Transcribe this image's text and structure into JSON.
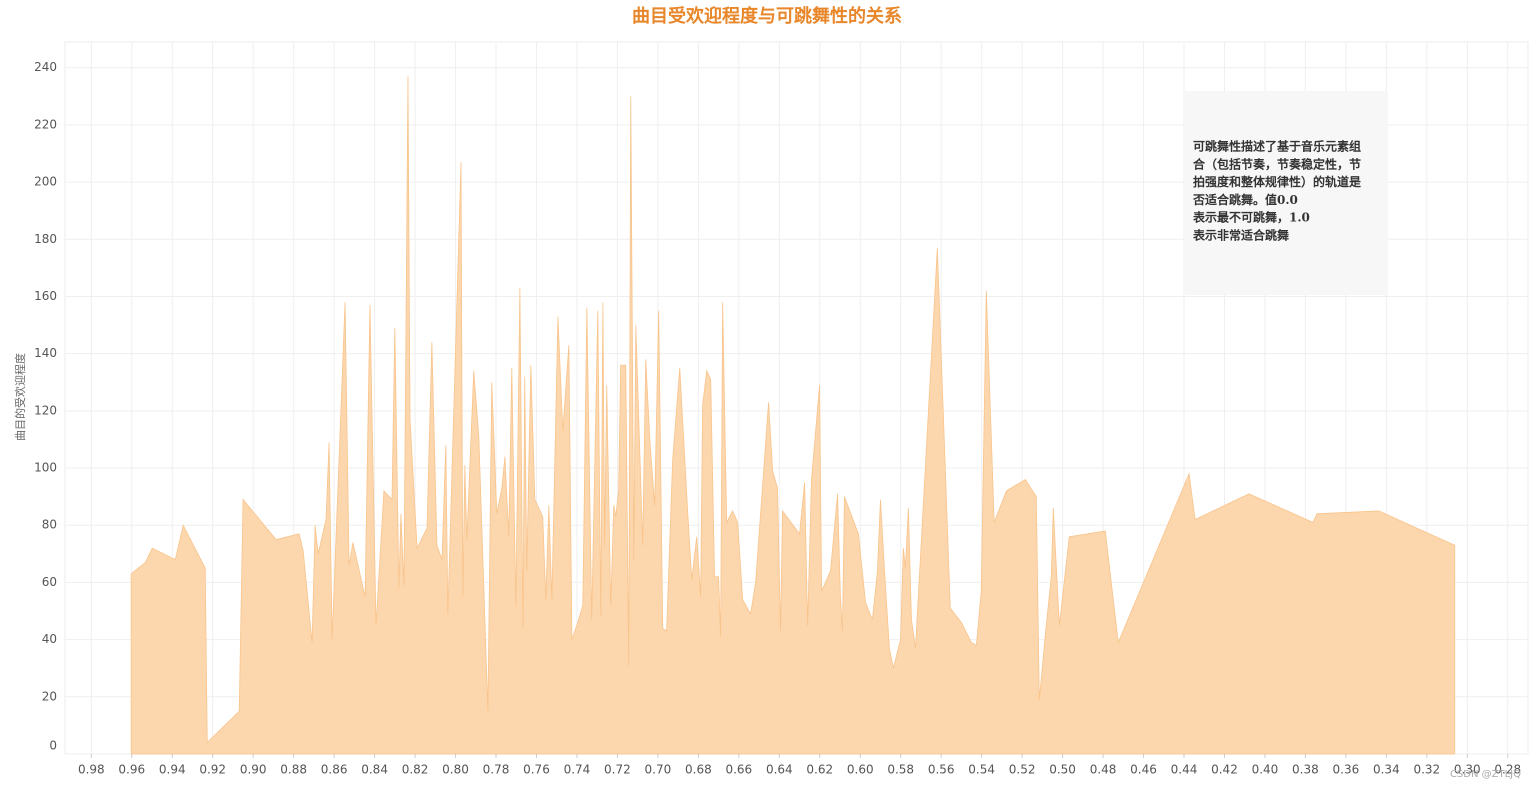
{
  "chart_data": {
    "type": "area",
    "title": "曲目受欢迎程度与可跳舞性的关系",
    "y_label": "曲目的受欢迎程度",
    "annotation": [
      "可跳舞性描述了基于音乐元素组",
      "合（包括节奏，节奏稳定性，节",
      "拍强度和整体规律性）的轨道是",
      "否适合跳舞。值0.0",
      "表示最不可跳舞，1.0",
      "表示非常适合跳舞"
    ],
    "watermark": "CSDN @ZTLJQ",
    "color": "#fcd6ac",
    "line_color": "#f8c48c",
    "grid": true,
    "x_reversed": true,
    "xlim": [
      0.993,
      0.27
    ],
    "ylim": [
      0,
      249
    ],
    "xticks": [
      0.98,
      0.96,
      0.94,
      0.92,
      {
        "value": 0.9,
        "label": "0.90"
      },
      0.88,
      0.86,
      0.84,
      0.82,
      {
        "value": 0.8,
        "label": "0.80"
      },
      0.78,
      0.76,
      0.74,
      0.72,
      {
        "value": 0.7,
        "label": "0.70"
      },
      0.68,
      0.66,
      0.64,
      0.62,
      {
        "value": 0.6,
        "label": "0.60"
      },
      0.58,
      0.56,
      0.54,
      0.52,
      {
        "value": 0.5,
        "label": "0.50"
      },
      0.48,
      0.46,
      0.44,
      0.42,
      {
        "value": 0.4,
        "label": "0.40"
      },
      0.38,
      0.36,
      0.34,
      0.32,
      {
        "value": 0.3,
        "label": "0.30"
      },
      0.28
    ],
    "yticks": [
      0,
      20,
      40,
      60,
      80,
      100,
      120,
      140,
      160,
      180,
      200,
      220,
      240
    ],
    "x": [
      0.9603,
      0.9533,
      0.9499,
      0.9385,
      0.9346,
      0.9237,
      0.9227,
      0.9069,
      0.905,
      0.8887,
      0.8773,
      0.8753,
      0.8709,
      0.8694,
      0.8679,
      0.864,
      0.8625,
      0.861,
      0.8546,
      0.8526,
      0.8507,
      0.8447,
      0.8423,
      0.8393,
      0.8354,
      0.8314,
      0.83,
      0.828,
      0.827,
      0.8255,
      0.8235,
      0.8225,
      0.819,
      0.8141,
      0.8117,
      0.8092,
      0.8067,
      0.8048,
      0.8038,
      0.7973,
      0.7964,
      0.7954,
      0.7944,
      0.791,
      0.7885,
      0.784,
      0.7821,
      0.7796,
      0.7771,
      0.7756,
      0.7737,
      0.7722,
      0.7702,
      0.7682,
      0.7667,
      0.7658,
      0.7648,
      0.7628,
      0.7608,
      0.7569,
      0.7554,
      0.7539,
      0.7524,
      0.7494,
      0.747,
      0.744,
      0.7425,
      0.7396,
      0.7371,
      0.7351,
      0.7327,
      0.7297,
      0.7282,
      0.7272,
      0.7263,
      0.7253,
      0.7233,
      0.7218,
      0.7208,
      0.7194,
      0.7184,
      0.7159,
      0.7144,
      0.7134,
      0.7119,
      0.7109,
      0.7075,
      0.706,
      0.704,
      0.7016,
      0.6996,
      0.6976,
      0.6957,
      0.6927,
      0.6892,
      0.6853,
      0.6833,
      0.6808,
      0.6789,
      0.6779,
      0.6759,
      0.6739,
      0.672,
      0.67,
      0.669,
      0.668,
      0.666,
      0.6631,
      0.6606,
      0.6581,
      0.6542,
      0.6517,
      0.6453,
      0.6433,
      0.6409,
      0.6394,
      0.6384,
      0.63,
      0.6275,
      0.626,
      0.6241,
      0.6201,
      0.6191,
      0.6147,
      0.6112,
      0.6098,
      0.6088,
      0.6078,
      0.6009,
      0.5974,
      0.594,
      0.5915,
      0.59,
      0.588,
      0.5856,
      0.5836,
      0.5801,
      0.5787,
      0.5777,
      0.5762,
      0.5747,
      0.5727,
      0.5619,
      0.5555,
      0.55,
      0.5451,
      0.5426,
      0.5402,
      0.5377,
      0.5338,
      0.5278,
      0.5184,
      0.513,
      0.5115,
      0.5085,
      0.5056,
      0.5046,
      0.5016,
      0.4967,
      0.4789,
      0.4725,
      0.4375,
      0.4345,
      0.4079,
      0.3763,
      0.3743,
      0.3437,
      0.3062
    ],
    "values": [
      63,
      67,
      72,
      68,
      80,
      65,
      4,
      15,
      89,
      75,
      77,
      71,
      39,
      80,
      70,
      82,
      109,
      40,
      158,
      66,
      74,
      55,
      157,
      45,
      92,
      89,
      149,
      58,
      84,
      59,
      237,
      117,
      72,
      79,
      144,
      73,
      68,
      108,
      49,
      207,
      55,
      101,
      75,
      134,
      111,
      15,
      130,
      84,
      93,
      104,
      76,
      135,
      52,
      163,
      44,
      132,
      64,
      136,
      89,
      83,
      54,
      87,
      54,
      153,
      113,
      143,
      40,
      46,
      52,
      156,
      47,
      155,
      48,
      158,
      73,
      129,
      52,
      87,
      83,
      92,
      136,
      136,
      31,
      230,
      68,
      150,
      73,
      138,
      110,
      87,
      155,
      44,
      43,
      103,
      135,
      85,
      61,
      76,
      55,
      122,
      134,
      131,
      62,
      62,
      41,
      158,
      81,
      85,
      81,
      54,
      49,
      60,
      123,
      99,
      93,
      43,
      85,
      77,
      95,
      45,
      96,
      129,
      57,
      64,
      91,
      55,
      43,
      90,
      77,
      53,
      47,
      64,
      89,
      64,
      37,
      30,
      40,
      72,
      65,
      86,
      47,
      37,
      177,
      51,
      46,
      39,
      38,
      57,
      162,
      81,
      92,
      96,
      90,
      19,
      42,
      62,
      86,
      45,
      76,
      78,
      39,
      98,
      82,
      91,
      81,
      84,
      85,
      73
    ]
  }
}
